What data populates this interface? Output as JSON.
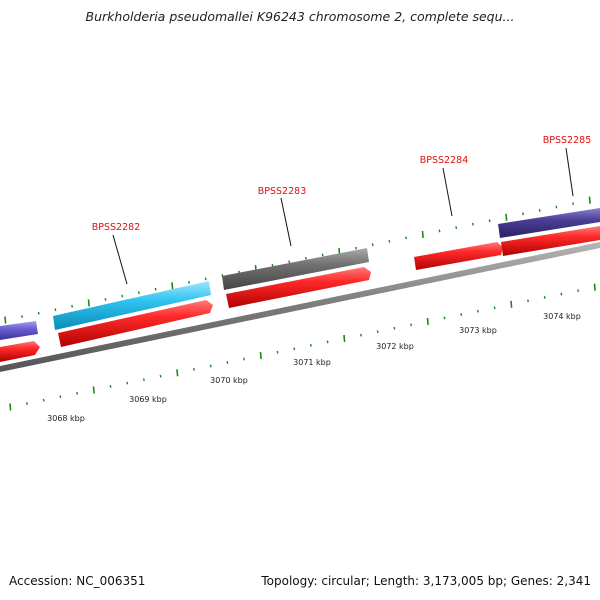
{
  "title": "Burkholderia pseudomallei K96243 chromosome 2, complete sequ...",
  "footer": {
    "accession": "Accession: NC_006351",
    "summary": "Topology: circular; Length: 3,173,005 bp; Genes: 2,341"
  },
  "genes": [
    {
      "label": "BPSS2282",
      "color": "#2fc4ef"
    },
    {
      "label": "BPSS2283",
      "color": "#6e6e6e"
    },
    {
      "label": "BPSS2284",
      "color": "#e81010"
    },
    {
      "label": "BPSS2285",
      "color": "#4a3f8f"
    }
  ],
  "kbp_labels": [
    "3068 kbp",
    "3069 kbp",
    "3070 kbp",
    "3071 kbp",
    "3072 kbp",
    "3073 kbp",
    "3074 kbp"
  ],
  "colors": {
    "cds_red": "#e81010",
    "tick_green": "#1a8a1a",
    "backbone_grey": "#7a7a7a",
    "left_partial_purple": "#6a5fcf"
  }
}
